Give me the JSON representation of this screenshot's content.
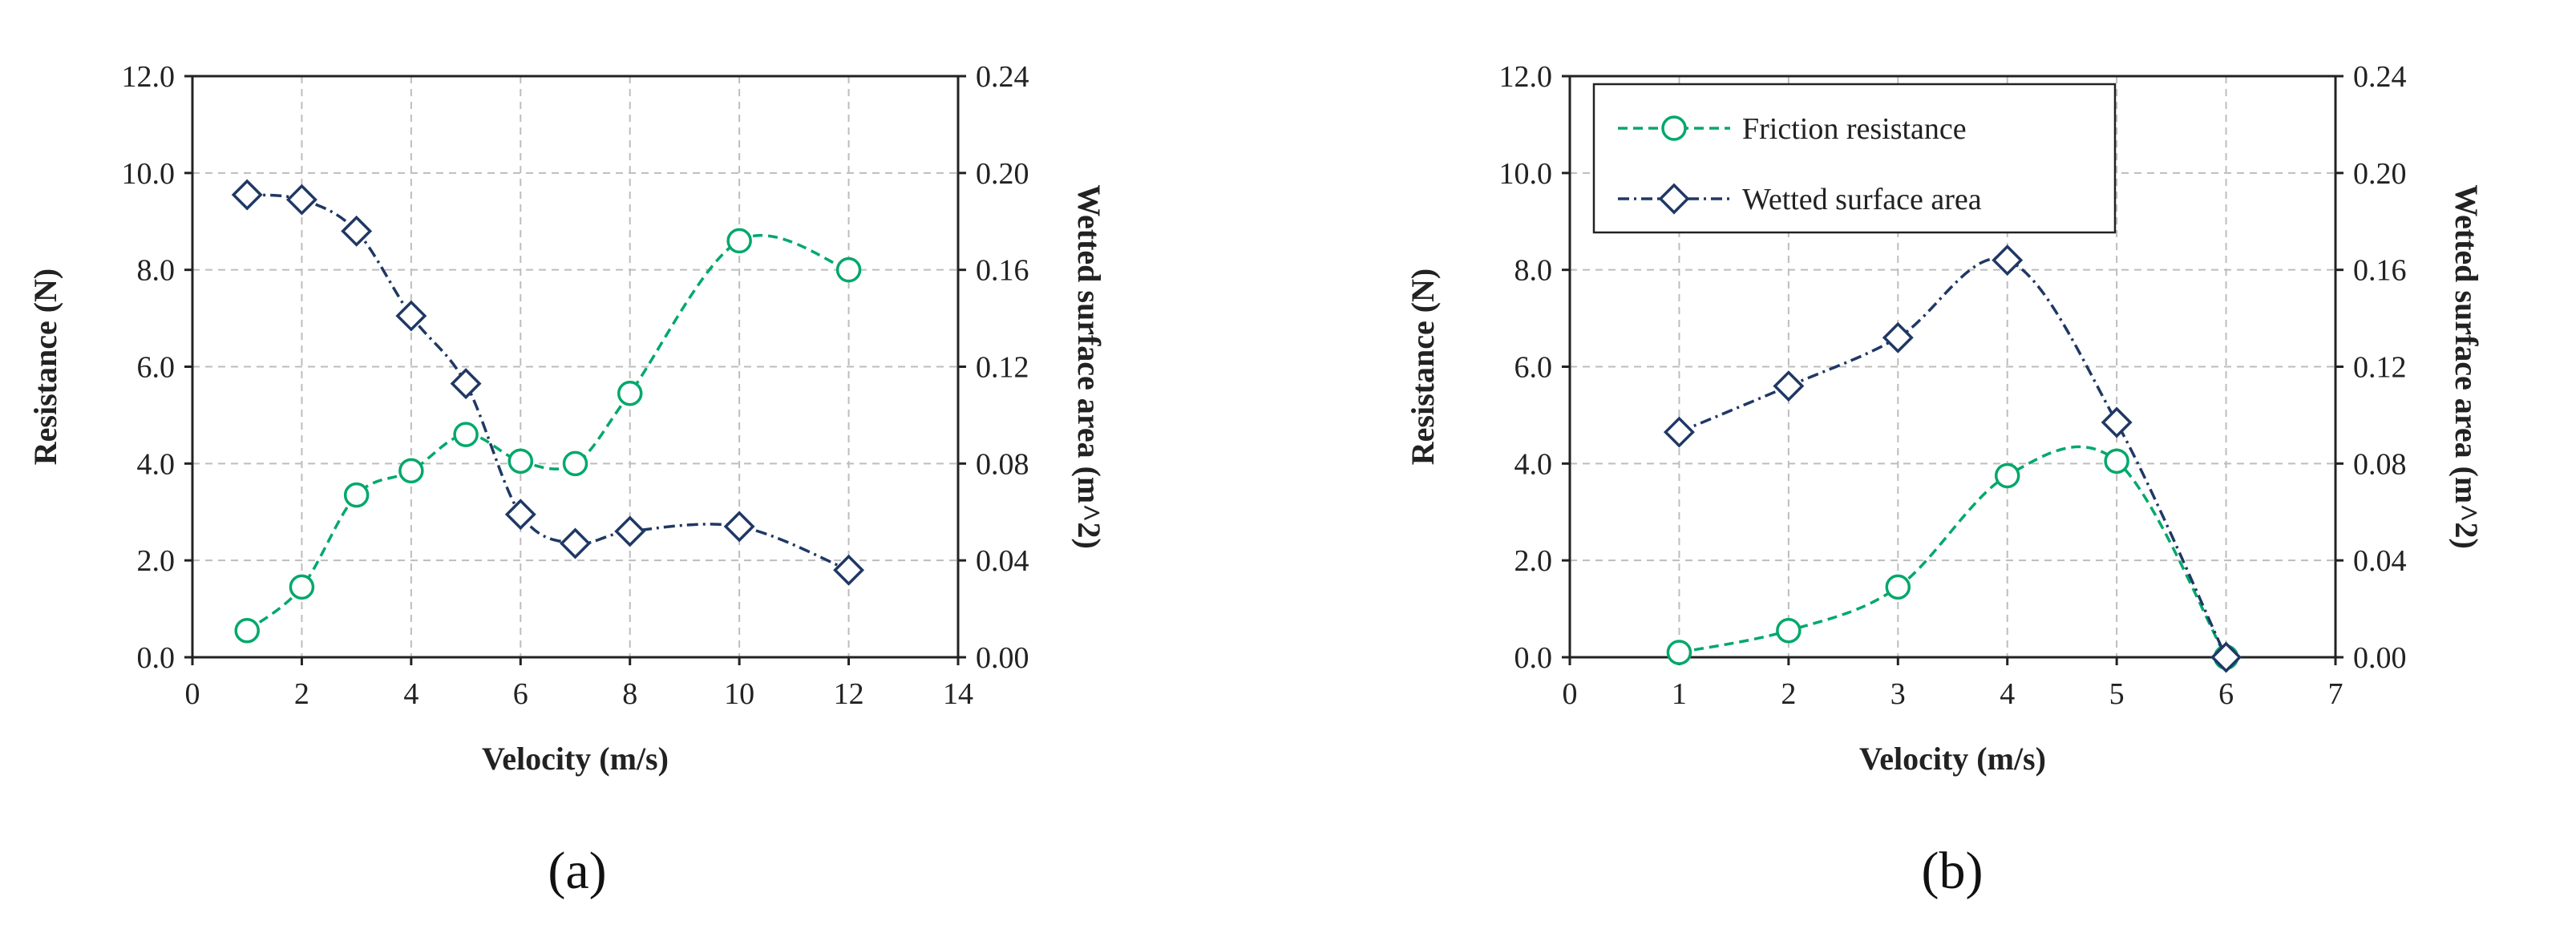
{
  "figure": {
    "colors": {
      "friction": "#00a86b",
      "wetted": "#1f3864"
    }
  },
  "chart_data": [
    {
      "type": "line",
      "panel_label": "(a)",
      "xlabel": "Velocity (m/s)",
      "ylabel": "Resistance (N)",
      "y2label": "Wetted surface area (m^2)",
      "xlim": [
        0,
        14
      ],
      "ylim": [
        0,
        12
      ],
      "y2lim": [
        0,
        0.24
      ],
      "xticks": [
        "0",
        "2",
        "4",
        "6",
        "8",
        "10",
        "12",
        "14"
      ],
      "yticks": [
        "0.0",
        "2.0",
        "4.0",
        "6.0",
        "8.0",
        "10.0",
        "12.0"
      ],
      "y2ticks": [
        "0.00",
        "0.04",
        "0.08",
        "0.12",
        "0.16",
        "0.20",
        "0.24"
      ],
      "legend": null,
      "series": [
        {
          "name": "Friction resistance",
          "axis": "left",
          "marker": "circle",
          "x": [
            1,
            2,
            3,
            4,
            5,
            6,
            7,
            8,
            10,
            12
          ],
          "values": [
            0.55,
            1.45,
            3.35,
            3.85,
            4.6,
            4.05,
            4.0,
            5.45,
            8.6,
            8.0
          ]
        },
        {
          "name": "Wetted surface area",
          "axis": "right",
          "marker": "diamond",
          "x": [
            1,
            2,
            3,
            4,
            5,
            6,
            7,
            8,
            10,
            12
          ],
          "values": [
            0.191,
            0.189,
            0.176,
            0.141,
            0.113,
            0.059,
            0.047,
            0.052,
            0.054,
            0.036
          ]
        }
      ]
    },
    {
      "type": "line",
      "panel_label": "(b)",
      "xlabel": "Velocity (m/s)",
      "ylabel": "Resistance (N)",
      "y2label": "Wetted surface area (m^2)",
      "xlim": [
        0,
        7
      ],
      "ylim": [
        0,
        12
      ],
      "y2lim": [
        0,
        0.24
      ],
      "xticks": [
        "0",
        "1",
        "2",
        "3",
        "4",
        "5",
        "6",
        "7"
      ],
      "yticks": [
        "0.0",
        "2.0",
        "4.0",
        "6.0",
        "8.0",
        "10.0",
        "12.0"
      ],
      "y2ticks": [
        "0.00",
        "0.04",
        "0.08",
        "0.12",
        "0.16",
        "0.20",
        "0.24"
      ],
      "legend": {
        "placement": "top-left",
        "entries": [
          "Friction resistance",
          "Wetted surface area"
        ]
      },
      "series": [
        {
          "name": "Friction resistance",
          "axis": "left",
          "marker": "circle",
          "x": [
            1,
            2,
            3,
            4,
            5,
            6
          ],
          "values": [
            0.1,
            0.55,
            1.45,
            3.75,
            4.05,
            0.0
          ]
        },
        {
          "name": "Wetted surface area",
          "axis": "right",
          "marker": "diamond",
          "x": [
            1,
            2,
            3,
            4,
            5,
            6
          ],
          "values": [
            0.093,
            0.112,
            0.132,
            0.164,
            0.097,
            0.0
          ]
        }
      ]
    }
  ]
}
